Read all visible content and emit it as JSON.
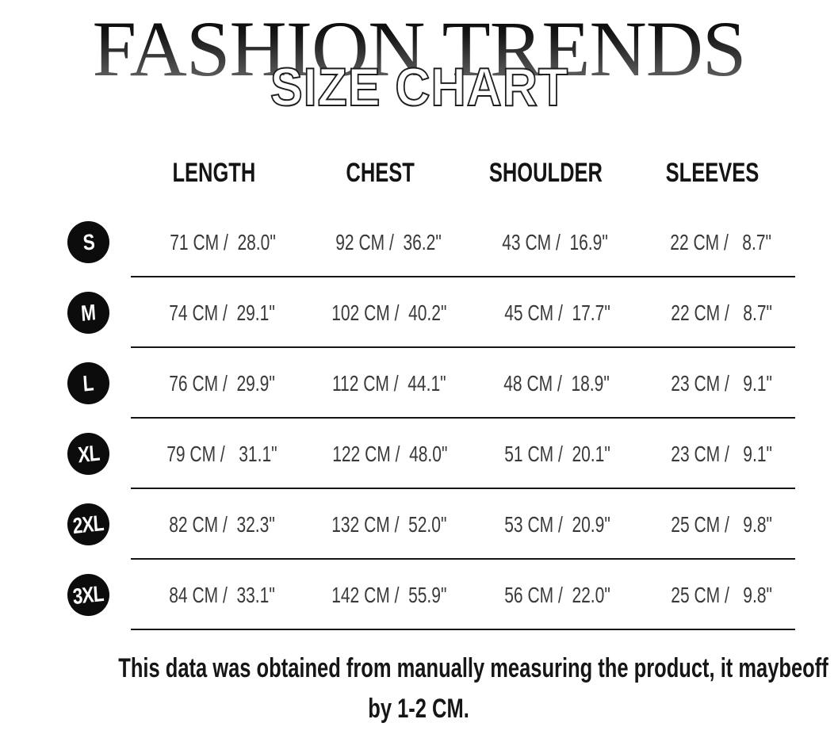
{
  "header": {
    "brand": "FASHION TRENDS",
    "title": "SIZE CHART"
  },
  "table": {
    "columns": [
      "LENGTH",
      "CHEST",
      "SHOULDER",
      "SLEEVES"
    ],
    "rows": [
      {
        "size": "S",
        "cells": [
          "71 CM /  28.0\"",
          "92 CM /  36.2\"",
          "43 CM /  16.9\"",
          "22 CM /   8.7\""
        ]
      },
      {
        "size": "M",
        "cells": [
          "74 CM /  29.1\"",
          "102 CM /  40.2\"",
          "45 CM /  17.7\"",
          "22 CM /   8.7\""
        ]
      },
      {
        "size": "L",
        "cells": [
          "76 CM /  29.9\"",
          "112 CM /  44.1\"",
          "48 CM /  18.9\"",
          "23 CM /   9.1\""
        ]
      },
      {
        "size": "XL",
        "cells": [
          "79 CM /   31.1\"",
          "122 CM /  48.0\"",
          "51 CM /  20.1\"",
          "23 CM /   9.1\""
        ]
      },
      {
        "size": "2XL",
        "cells": [
          "82 CM /  32.3\"",
          "132 CM /  52.0\"",
          "53 CM /  20.9\"",
          "25 CM /   9.8\""
        ]
      },
      {
        "size": "3XL",
        "cells": [
          "84 CM /  33.1\"",
          "142 CM /  55.9\"",
          "56 CM /  22.0\"",
          "25 CM /   9.8\""
        ]
      }
    ]
  },
  "footer": {
    "line1": "This data was obtained from manually measuring the product, it maybeoff",
    "line2": "by 1-2 CM."
  },
  "colors": {
    "badge": "#0c0c0c",
    "rule": "#161616",
    "title_gradient_top": "#000000",
    "title_gradient_bottom": "#6f6f6f",
    "subtitle_fill": "#ffffff",
    "subtitle_stroke": "#1f1f1f"
  }
}
